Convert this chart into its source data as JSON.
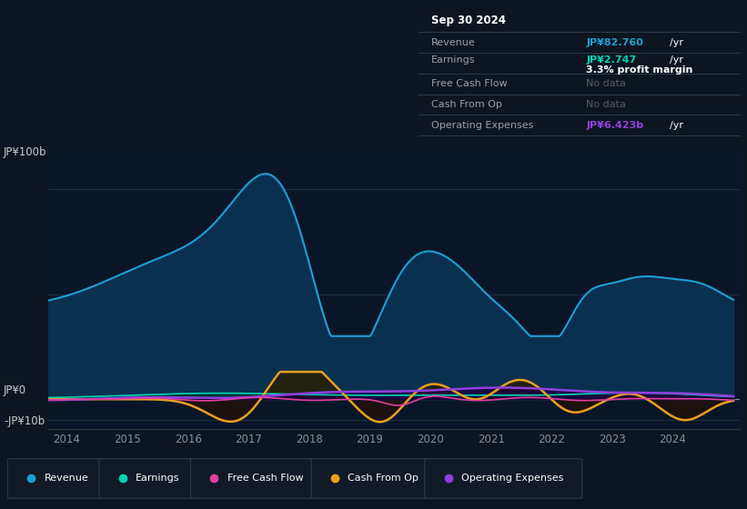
{
  "bg_color": "#0d1520",
  "plot_bg_color": "#0a1628",
  "ylabel_top": "JP¥100b",
  "ylabel_bottom": "-JP¥10b",
  "ylabel_zero": "JP¥0",
  "revenue_color": "#1e9fd4",
  "revenue_fill": "#0a3050",
  "earnings_color": "#00d4b4",
  "earnings_fill": "#003830",
  "cashflow_color": "#e040a0",
  "cashop_color": "#e8a020",
  "cashop_fill_pos": "#2a1e00",
  "cashop_fill_neg": "#2a0e00",
  "opex_color": "#9040e0",
  "opex_fill": "#1e0040",
  "tooltip_bg": "#050e18",
  "tooltip_border": "#2a3a4a",
  "tooltip_title": "Sep 30 2024",
  "tooltip_revenue_label": "Revenue",
  "tooltip_revenue_value": "JP¥82.760b /yr",
  "tooltip_earnings_label": "Earnings",
  "tooltip_earnings_value": "JP¥2.747b /yr",
  "tooltip_margin": "3.3% profit margin",
  "tooltip_fcf_label": "Free Cash Flow",
  "tooltip_fcf_value": "No data",
  "tooltip_cashop_label": "Cash From Op",
  "tooltip_cashop_value": "No data",
  "tooltip_opex_label": "Operating Expenses",
  "tooltip_opex_value": "JP¥6.423b /yr",
  "legend_items": [
    "Revenue",
    "Earnings",
    "Free Cash Flow",
    "Cash From Op",
    "Operating Expenses"
  ],
  "legend_colors": [
    "#1e9fd4",
    "#00d4b4",
    "#e040a0",
    "#e8a020",
    "#9040e0"
  ]
}
